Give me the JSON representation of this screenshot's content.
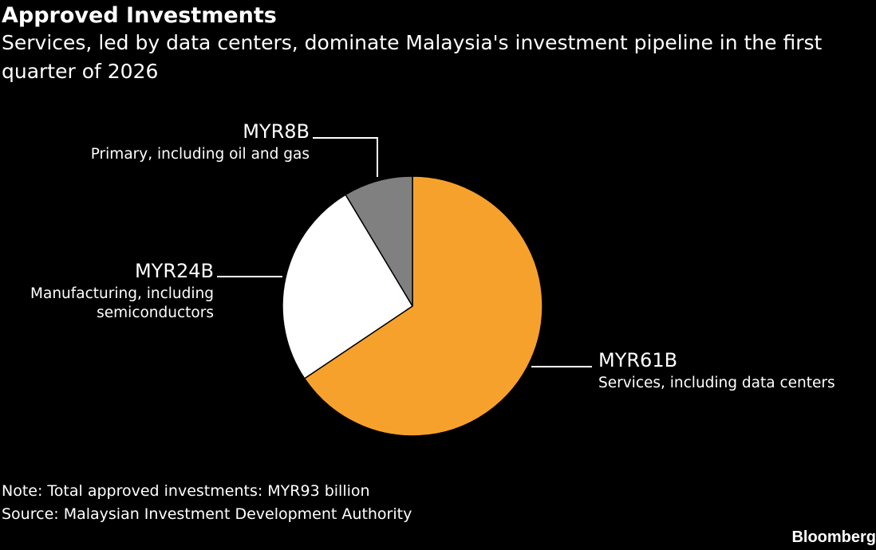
{
  "header": {
    "title": "Approved Investments",
    "subtitle": "Services, led by data centers, dominate Malaysia's investment pipeline in the first quarter of 2026"
  },
  "chart_data": {
    "type": "pie",
    "title": "Approved Investments",
    "subtitle": "Services, led by data centers, dominate Malaysia's investment pipeline in the first quarter of 2026",
    "unit": "MYR billion",
    "start": "12 o'clock",
    "direction": "clockwise",
    "slices": [
      {
        "value": 61,
        "value_label": "MYR61B",
        "description_lines": [
          "Services, including data centers"
        ],
        "color": "#f7a12d"
      },
      {
        "value": 24,
        "value_label": "MYR24B",
        "description_lines": [
          "Manufacturing, including",
          "semiconductors"
        ],
        "color": "#ffffff"
      },
      {
        "value": 8,
        "value_label": "MYR8B",
        "description_lines": [
          "Primary, including oil and gas"
        ],
        "color": "#808080"
      }
    ]
  },
  "footer": {
    "note": "Note: Total approved investments: MYR93 billion",
    "source": "Source: Malaysian Investment Development Authority",
    "brand": "Bloomberg"
  }
}
